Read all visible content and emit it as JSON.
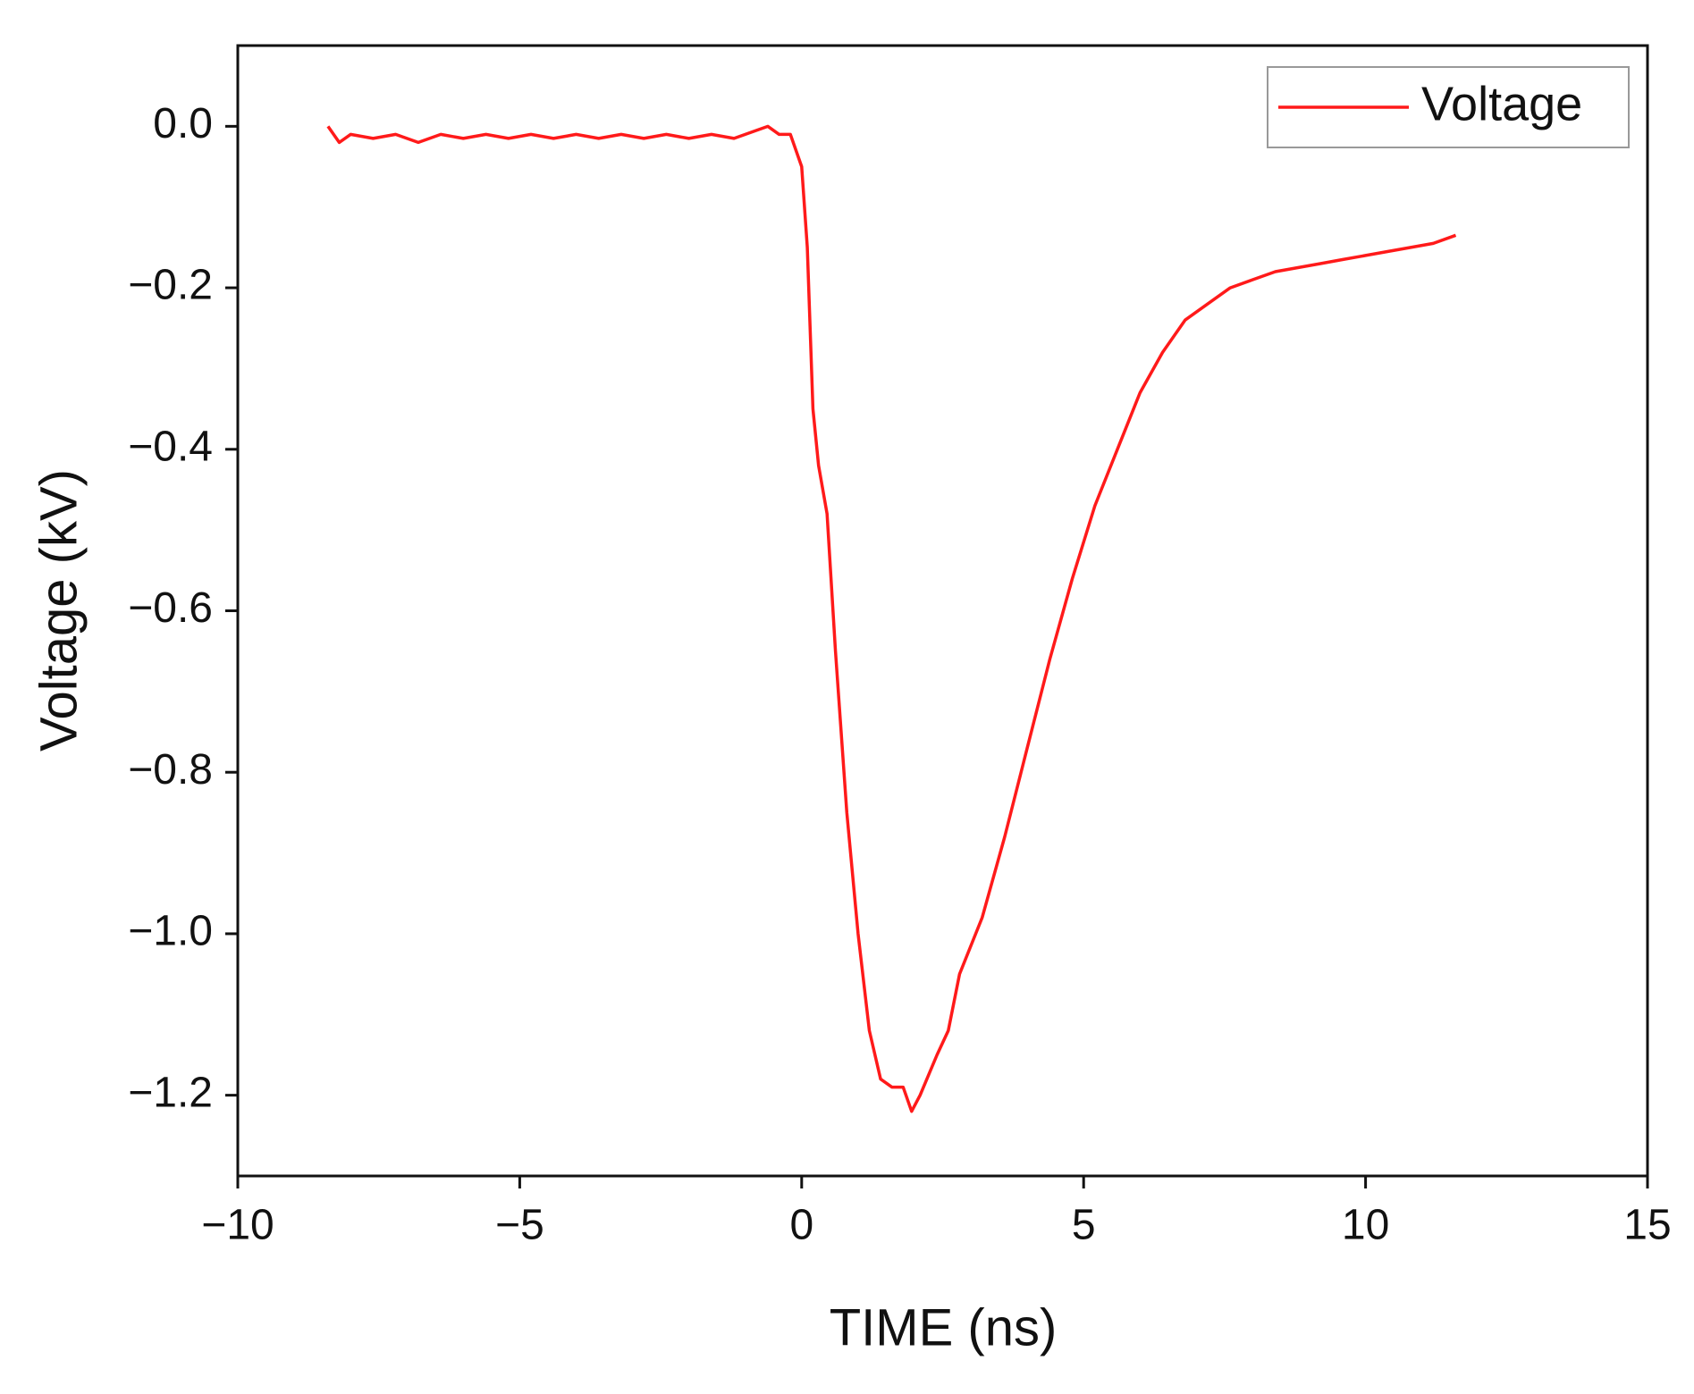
{
  "chart_data": {
    "type": "line",
    "xlabel": "TIME (ns)",
    "ylabel": "Voltage (kV)",
    "x": [
      -8.4,
      -8.2,
      -8,
      -7.6,
      -7.2,
      -6.8,
      -6.4,
      -6,
      -5.6,
      -5.2,
      -4.8,
      -4.4,
      -4,
      -3.6,
      -3.2,
      -2.8,
      -2.4,
      -2,
      -1.6,
      -1.2,
      -0.8,
      -0.6,
      -0.4,
      -0.2,
      0,
      0.1,
      0.2,
      0.3,
      0.45,
      0.6,
      0.8,
      1.0,
      1.2,
      1.4,
      1.6,
      1.8,
      1.95,
      2.1,
      2.4,
      2.6,
      2.8,
      3.2,
      3.6,
      4,
      4.4,
      4.8,
      5.2,
      5.6,
      6,
      6.4,
      6.8,
      7.2,
      7.6,
      8,
      8.4,
      8.8,
      9.2,
      9.6,
      10,
      10.4,
      10.8,
      11.2,
      11.6
    ],
    "series": [
      {
        "name": "Voltage",
        "color": "#ff1a1a",
        "values": [
          0,
          -0.02,
          -0.01,
          -0.015,
          -0.01,
          -0.02,
          -0.01,
          -0.015,
          -0.01,
          -0.015,
          -0.01,
          -0.015,
          -0.01,
          -0.015,
          -0.01,
          -0.015,
          -0.01,
          -0.015,
          -0.01,
          -0.015,
          -0.005,
          0,
          -0.01,
          -0.01,
          -0.05,
          -0.15,
          -0.35,
          -0.42,
          -0.48,
          -0.65,
          -0.85,
          -1.0,
          -1.12,
          -1.18,
          -1.19,
          -1.19,
          -1.22,
          -1.2,
          -1.15,
          -1.12,
          -1.05,
          -0.98,
          -0.88,
          -0.77,
          -0.66,
          -0.56,
          -0.47,
          -0.4,
          -0.33,
          -0.28,
          -0.24,
          -0.22,
          -0.2,
          -0.19,
          -0.18,
          -0.175,
          -0.17,
          -0.165,
          -0.16,
          -0.155,
          -0.15,
          -0.145,
          -0.135
        ]
      }
    ],
    "xlim": [
      -10,
      15
    ],
    "xticks": [
      {
        "value": -10,
        "label": "−10"
      },
      {
        "value": -5,
        "label": "−5"
      },
      0,
      5,
      10,
      15
    ],
    "ylim": [
      -1.3,
      0.1
    ],
    "yticks": [
      {
        "value": -1.2,
        "label": "−1.2"
      },
      {
        "value": -1.0,
        "label": "−1.0"
      },
      {
        "value": -0.8,
        "label": "−0.8"
      },
      {
        "value": -0.6,
        "label": "−0.6"
      },
      {
        "value": -0.4,
        "label": "−0.4"
      },
      {
        "value": -0.2,
        "label": "−0.2"
      },
      {
        "value": 0,
        "label": "0.0"
      }
    ],
    "grid": false,
    "legend": "upper right"
  }
}
